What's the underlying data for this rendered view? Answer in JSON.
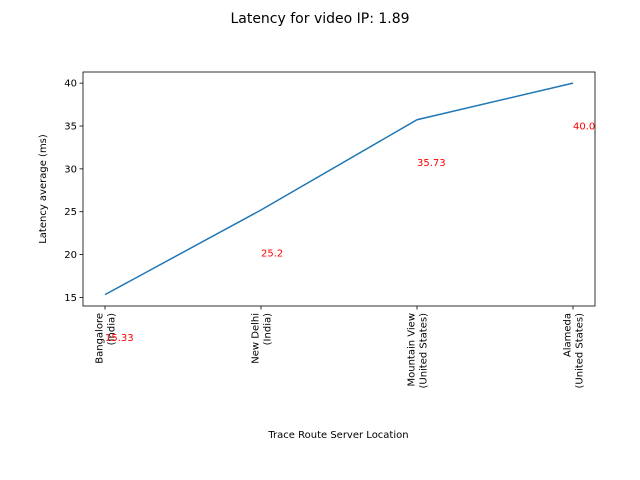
{
  "chart_data": {
    "type": "line",
    "title": "Latency for video IP: 1.89",
    "xlabel": "Trace Route Server Location",
    "ylabel": "Latency average (ms)",
    "categories": [
      [
        "Bangalore",
        "(India)"
      ],
      [
        "New Delhi",
        "(India)"
      ],
      [
        "Mountain View",
        "(United States)"
      ],
      [
        "Alameda",
        "(United States)"
      ]
    ],
    "series": [
      {
        "values": [
          15.33,
          25.2,
          35.73,
          40.0
        ]
      }
    ],
    "data_labels": [
      "15.33",
      "25.2",
      "35.73",
      "40.0"
    ],
    "yticks": [
      15,
      20,
      25,
      30,
      35,
      40
    ],
    "ylim": [
      14.0,
      41.3
    ],
    "grid": false,
    "line_color": "#1f77b4",
    "label_color": "#ff0000"
  }
}
